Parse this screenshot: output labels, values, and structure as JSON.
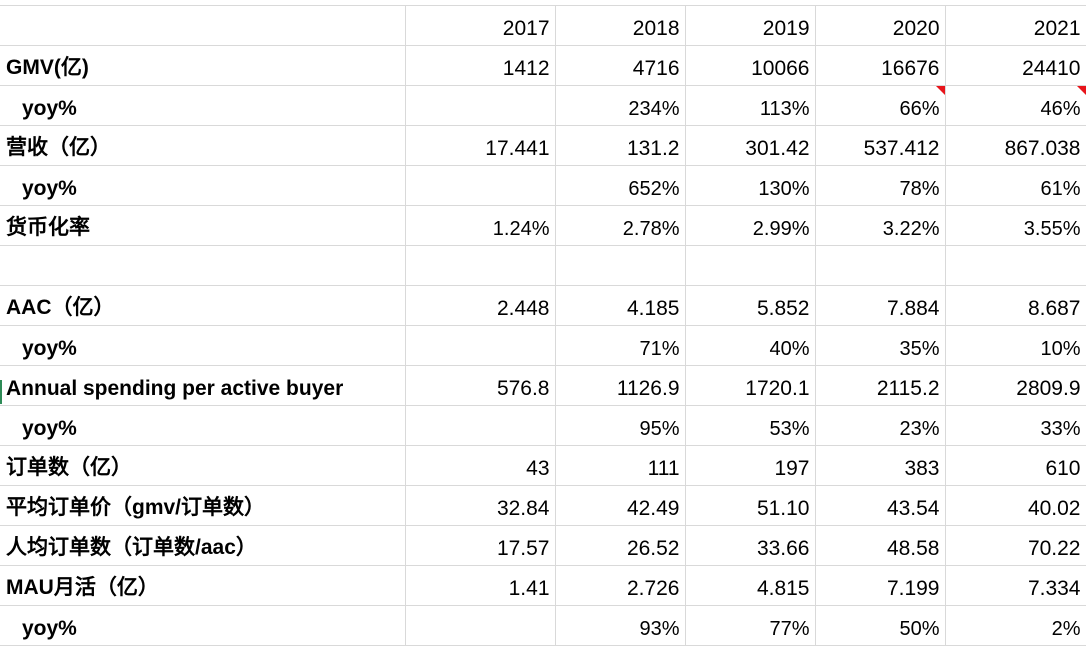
{
  "header": [
    "",
    "2017",
    "2018",
    "2019",
    "2020",
    "2021"
  ],
  "rows": [
    {
      "label": "GMV(亿)",
      "style": "bold",
      "values": [
        "1412",
        "4716",
        "10066",
        "16676",
        "24410"
      ],
      "comments": [
        false,
        false,
        false,
        false,
        false
      ]
    },
    {
      "label": "yoy%",
      "style": "indent",
      "values": [
        "",
        "234%",
        "113%",
        "66%",
        "46%"
      ],
      "comments": [
        false,
        false,
        false,
        true,
        true
      ]
    },
    {
      "label": "营收（亿）",
      "style": "bold",
      "values": [
        "17.441",
        "131.2",
        "301.42",
        "537.412",
        "867.038"
      ],
      "comments": [
        false,
        false,
        false,
        false,
        false
      ]
    },
    {
      "label": "yoy%",
      "style": "indent",
      "values": [
        "",
        "652%",
        "130%",
        "78%",
        "61%"
      ],
      "comments": [
        false,
        false,
        false,
        false,
        false
      ]
    },
    {
      "label": "货币化率",
      "style": "bold",
      "values": [
        "1.24%",
        "2.78%",
        "2.99%",
        "3.22%",
        "3.55%"
      ],
      "comments": [
        false,
        false,
        false,
        false,
        false
      ]
    },
    {
      "label": "",
      "style": "bold",
      "values": [
        "",
        "",
        "",
        "",
        ""
      ],
      "comments": [
        false,
        false,
        false,
        false,
        false
      ]
    },
    {
      "label": "AAC（亿）",
      "style": "bold",
      "values": [
        "2.448",
        "4.185",
        "5.852",
        "7.884",
        "8.687"
      ],
      "comments": [
        false,
        false,
        false,
        false,
        false
      ]
    },
    {
      "label": "yoy%",
      "style": "indent",
      "values": [
        "",
        "71%",
        "40%",
        "35%",
        "10%"
      ],
      "comments": [
        false,
        false,
        false,
        false,
        false
      ]
    },
    {
      "label": "Annual spending per active buyer",
      "style": "bold",
      "values": [
        "576.8",
        "1126.9",
        "1720.1",
        "2115.2",
        "2809.9"
      ],
      "comments": [
        false,
        false,
        false,
        false,
        false
      ]
    },
    {
      "label": "yoy%",
      "style": "indent",
      "values": [
        "",
        "95%",
        "53%",
        "23%",
        "33%"
      ],
      "comments": [
        false,
        false,
        false,
        false,
        false
      ]
    },
    {
      "label": "订单数（亿）",
      "style": "bold",
      "values": [
        "43",
        "111",
        "197",
        "383",
        "610"
      ],
      "comments": [
        false,
        false,
        false,
        false,
        false
      ]
    },
    {
      "label": "平均订单价（gmv/订单数）",
      "style": "bold",
      "values": [
        "32.84",
        "42.49",
        "51.10",
        "43.54",
        "40.02"
      ],
      "comments": [
        false,
        false,
        false,
        false,
        false
      ]
    },
    {
      "label": "人均订单数（订单数/aac）",
      "style": "bold",
      "values": [
        "17.57",
        "26.52",
        "33.66",
        "48.58",
        "70.22"
      ],
      "comments": [
        false,
        false,
        false,
        false,
        false
      ]
    },
    {
      "label": "MAU月活（亿）",
      "style": "bold",
      "values": [
        "1.41",
        "2.726",
        "4.815",
        "7.199",
        "7.334"
      ],
      "comments": [
        false,
        false,
        false,
        false,
        false
      ]
    },
    {
      "label": "yoy%",
      "style": "indent",
      "values": [
        "",
        "93%",
        "77%",
        "50%",
        "2%"
      ],
      "comments": [
        false,
        false,
        false,
        false,
        false
      ]
    }
  ],
  "colors": {
    "grid": "#d9d9d9",
    "comment_marker": "#e8141b"
  }
}
